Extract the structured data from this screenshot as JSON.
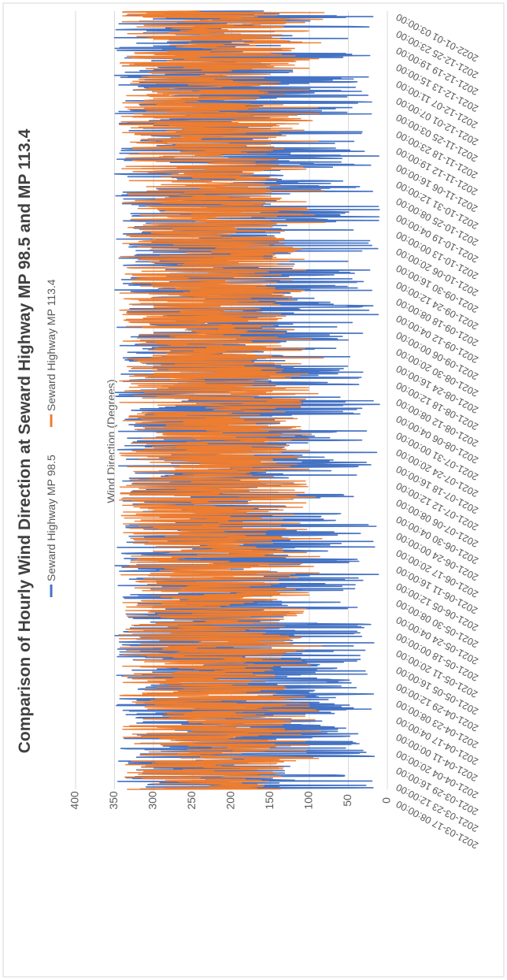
{
  "chart_data": {
    "type": "line",
    "title": "Comparison of Hourly Wind Direction at Seward Highway MP 98.5 and MP 113.4",
    "ylabel": "Wind Direction (Degrees)",
    "xlabel": "",
    "ylim": [
      0,
      400
    ],
    "yticks": [
      "0",
      "50",
      "100",
      "150",
      "200",
      "250",
      "300",
      "350",
      "400"
    ],
    "ytick_values": [
      0,
      50,
      100,
      150,
      200,
      250,
      300,
      350,
      400
    ],
    "grid": true,
    "legend_position": "top",
    "x_start": "2021-03-17 08:00:00",
    "x_end": "2022-01-03 00:00:00",
    "xticks": [
      "2021-03-17 08:00:00",
      "2021-03-23 12:00:00",
      "2021-03-29 16:00:00",
      "2021-04-04 20:00:00",
      "2021-04-11 00:00:00",
      "2021-04-17 04:00:00",
      "2021-04-23 08:00:00",
      "2021-04-29 12:00:00",
      "2021-05-05 16:00:00",
      "2021-05-11 20:00:00",
      "2021-05-18 00:00:00",
      "2021-05-24 04:00:00",
      "2021-05-30 08:00:00",
      "2021-06-05 12:00:00",
      "2021-06-11 16:00:00",
      "2021-06-17 20:00:00",
      "2021-06-24 00:00:00",
      "2021-06-30 04:00:00",
      "2021-07-06 08:00:00",
      "2021-07-12 12:00:00",
      "2021-07-18 16:00:00",
      "2021-07-24 20:00:00",
      "2021-07-31 00:00:00",
      "2021-08-06 04:00:00",
      "2021-08-12 08:00:00",
      "2021-08-18 12:00:00",
      "2021-08-24 16:00:00",
      "2021-08-30 20:00:00",
      "2021-09-06 00:00:00",
      "2021-09-12 04:00:00",
      "2021-09-18 08:00:00",
      "2021-09-24 12:00:00",
      "2021-09-30 16:00:00",
      "2021-10-06 20:00:00",
      "2021-10-13 00:00:00",
      "2021-10-19 04:00:00",
      "2021-10-25 08:00:00",
      "2021-10-31 12:00:00",
      "2021-11-06 16:00:00",
      "2021-11-12 19:00:00",
      "2021-11-18 23:00:00",
      "2021-11-25 03:00:00",
      "2021-12-01 07:00:00",
      "2021-12-07 11:00:00",
      "2021-12-13 15:00:00",
      "2021-12-19 19:00:00",
      "2021-12-25 23:00:00",
      "2022-01-01 03:00:00"
    ],
    "series": [
      {
        "name": "Seward Highway MP 98.5",
        "color": "#4472c4",
        "samples": 1960,
        "typical_range": [
          15,
          340
        ],
        "note": "hourly series, widely variable between about 10 and 355 degrees"
      },
      {
        "name": "Seward Highway MP 113.4",
        "color": "#ed7d31",
        "samples": 1960,
        "typical_range": [
          100,
          340
        ],
        "note": "hourly series, mostly oscillating between about 100 and 340 degrees"
      }
    ]
  }
}
